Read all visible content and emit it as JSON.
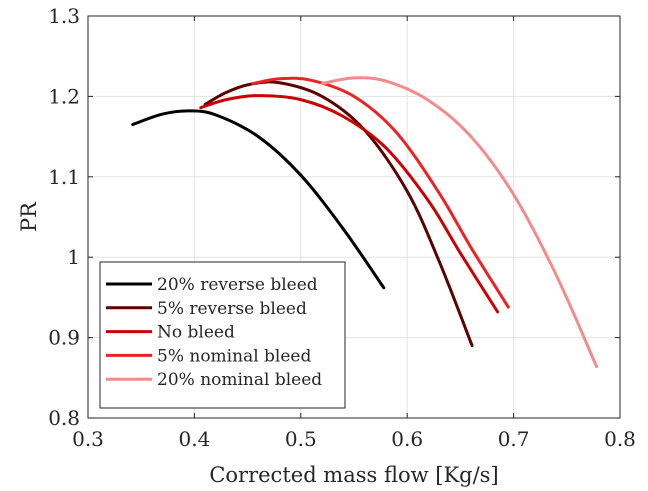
{
  "chart_data": {
    "type": "line",
    "title": "",
    "xlabel": "Corrected mass flow [Kg/s]",
    "ylabel": "PR",
    "xlim": [
      0.3,
      0.8
    ],
    "ylim": [
      0.8,
      1.3
    ],
    "xticks": [
      "0.3",
      "0.4",
      "0.5",
      "0.6",
      "0.7",
      "0.8"
    ],
    "yticks": [
      "0.8",
      "0.9",
      "1",
      "1.1",
      "1.2",
      "1.3"
    ],
    "grid": true,
    "legend_position": "bottom-left",
    "series": [
      {
        "name": "20% reverse bleed",
        "color": "#000000",
        "x": [
          0.342,
          0.37,
          0.395,
          0.42,
          0.46,
          0.5,
          0.54,
          0.578
        ],
        "y": [
          1.165,
          1.178,
          1.182,
          1.177,
          1.15,
          1.102,
          1.035,
          0.962
        ]
      },
      {
        "name": "5% reverse bleed",
        "color": "#5c0000",
        "x": [
          0.41,
          0.43,
          0.452,
          0.48,
          0.52,
          0.56,
          0.6,
          0.63,
          0.661
        ],
        "y": [
          1.19,
          1.205,
          1.215,
          1.217,
          1.2,
          1.158,
          1.082,
          0.995,
          0.89
        ]
      },
      {
        "name": "No bleed",
        "color": "#cc0000",
        "x": [
          0.406,
          0.43,
          0.46,
          0.5,
          0.54,
          0.58,
          0.62,
          0.65,
          0.685
        ],
        "y": [
          1.186,
          1.196,
          1.201,
          1.196,
          1.175,
          1.136,
          1.07,
          1.005,
          0.932
        ]
      },
      {
        "name": "5% nominal bleed",
        "color": "#ee2222",
        "x": [
          0.455,
          0.48,
          0.51,
          0.55,
          0.59,
          0.63,
          0.66,
          0.695
        ],
        "y": [
          1.216,
          1.222,
          1.22,
          1.2,
          1.155,
          1.08,
          1.012,
          0.938
        ]
      },
      {
        "name": "20% nominal bleed",
        "color": "#f58a8a",
        "x": [
          0.52,
          0.55,
          0.58,
          0.62,
          0.66,
          0.7,
          0.74,
          0.778
        ],
        "y": [
          1.216,
          1.223,
          1.219,
          1.195,
          1.15,
          1.078,
          0.978,
          0.864
        ]
      }
    ]
  }
}
